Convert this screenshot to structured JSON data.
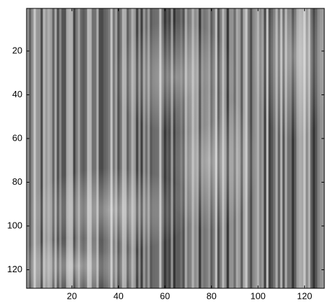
{
  "chart_data": {
    "type": "image",
    "colormap": "gray",
    "xlim": [
      0.5,
      128.5
    ],
    "ylim": [
      0.5,
      128.5
    ],
    "y_reversed": true,
    "xticks": [
      20,
      40,
      60,
      80,
      100,
      120
    ],
    "yticks": [
      20,
      40,
      60,
      80,
      100,
      120
    ]
  }
}
